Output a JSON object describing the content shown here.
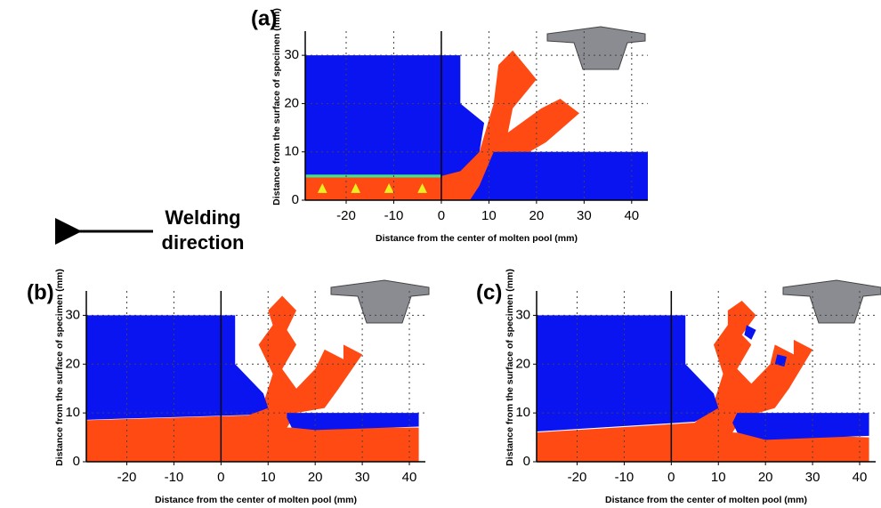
{
  "chart_data": [
    {
      "type": "contour",
      "label": "(a)",
      "xlabel": "Distance from the center of molten pool (mm)",
      "ylabel": "Distance from the surface of specimen (mm)",
      "xlim": [
        -28.6,
        43.4
      ],
      "ylim": [
        0,
        35
      ],
      "xticks": [
        -20,
        -10,
        0,
        10,
        20,
        30,
        40
      ],
      "yticks": [
        0,
        10,
        20,
        30
      ],
      "grid": true
    },
    {
      "type": "contour",
      "label": "(b)",
      "xlabel": "Distance from the center of molten pool (mm)",
      "ylabel": "Distance from the surface of specimen (mm)",
      "xlim": [
        -28.6,
        43.4
      ],
      "ylim": [
        0,
        35
      ],
      "xticks": [
        -20,
        -10,
        0,
        10,
        20,
        30,
        40
      ],
      "yticks": [
        0,
        10,
        20,
        30
      ],
      "grid": true
    },
    {
      "type": "contour",
      "label": "(c)",
      "xlabel": "Distance from the center of molten pool (mm)",
      "ylabel": "Distance from the surface of specimen (mm)",
      "xlim": [
        -28.6,
        43.4
      ],
      "ylim": [
        0,
        35
      ],
      "xticks": [
        -20,
        -10,
        0,
        10,
        20,
        30,
        40
      ],
      "yticks": [
        0,
        10,
        20,
        30
      ],
      "grid": true
    }
  ],
  "annotation": [
    "Welding",
    "direction"
  ]
}
